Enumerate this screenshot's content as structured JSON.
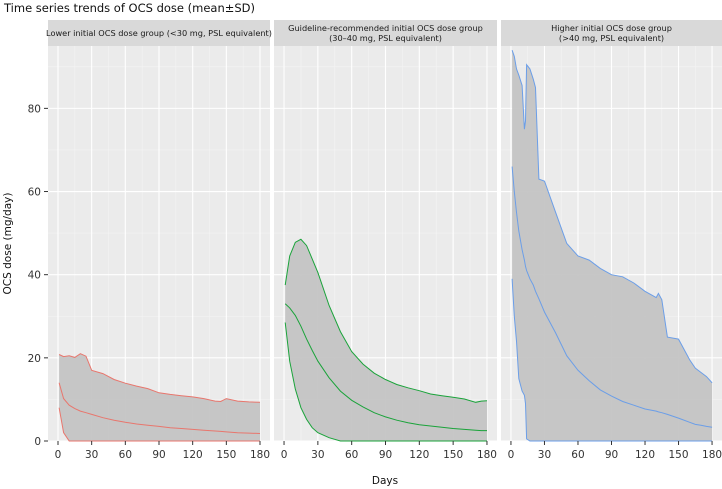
{
  "title": "Time series trends of OCS dose (mean±SD)",
  "chart_data": {
    "type": "area",
    "title": "Time series trends of OCS dose (mean±SD)",
    "xlabel": "Days",
    "ylabel": "OCS dose (mg/day)",
    "xlim": [
      0,
      180
    ],
    "ylim": [
      0,
      95
    ],
    "x_ticks": [
      0,
      30,
      60,
      90,
      120,
      150,
      180
    ],
    "y_ticks": [
      0,
      20,
      40,
      60,
      80
    ],
    "x_tick_labels": [
      "0",
      "30",
      "60",
      "90",
      "120",
      "150",
      "180"
    ],
    "y_tick_labels": [
      "0",
      "20",
      "40",
      "60",
      "80"
    ],
    "grid": true,
    "legend": "none",
    "panels": [
      {
        "strip": [
          "Lower initial OCS dose group (<30 mg, PSL equivalent)"
        ],
        "color": "#e8766d",
        "x": [
          1,
          5,
          10,
          15,
          20,
          25,
          30,
          40,
          50,
          60,
          70,
          80,
          90,
          100,
          110,
          120,
          130,
          140,
          145,
          150,
          160,
          170,
          180
        ],
        "mean": [
          14.0,
          10.2,
          8.6,
          7.8,
          7.2,
          6.8,
          6.4,
          5.6,
          5.0,
          4.5,
          4.1,
          3.8,
          3.5,
          3.2,
          3.0,
          2.8,
          2.6,
          2.4,
          2.3,
          2.2,
          2.0,
          1.9,
          1.8
        ],
        "upper": [
          20.8,
          20.3,
          20.5,
          20.1,
          21.0,
          20.4,
          17.0,
          16.2,
          14.8,
          13.9,
          13.2,
          12.6,
          11.6,
          11.2,
          10.9,
          10.6,
          10.2,
          9.6,
          9.5,
          10.2,
          9.6,
          9.4,
          9.3
        ],
        "lower": [
          8.0,
          2.0,
          0,
          0,
          0,
          0,
          0,
          0,
          0,
          0,
          0,
          0,
          0,
          0,
          0,
          0,
          0,
          0,
          0,
          0,
          0,
          0,
          0
        ]
      },
      {
        "strip": [
          "Guideline-recommended initial OCS dose group",
          "(30–40 mg, PSL equivalent)"
        ],
        "color": "#1aa33a",
        "x": [
          1,
          5,
          10,
          15,
          20,
          25,
          30,
          40,
          50,
          60,
          70,
          80,
          90,
          100,
          110,
          120,
          130,
          140,
          150,
          160,
          170,
          175,
          180
        ],
        "mean": [
          33.0,
          32.0,
          30.2,
          27.6,
          24.5,
          21.8,
          19.2,
          15.2,
          12.0,
          9.8,
          8.2,
          6.8,
          5.8,
          5.0,
          4.4,
          3.9,
          3.6,
          3.3,
          3.0,
          2.8,
          2.6,
          2.5,
          2.5
        ],
        "upper": [
          37.5,
          44.5,
          47.8,
          48.5,
          47.0,
          43.8,
          40.5,
          32.6,
          26.3,
          21.5,
          18.5,
          16.3,
          14.8,
          13.6,
          12.8,
          12.1,
          11.3,
          10.9,
          10.5,
          10.1,
          9.3,
          9.6,
          9.7
        ],
        "lower": [
          28.5,
          19.2,
          12.5,
          8.0,
          5.2,
          3.2,
          2.0,
          0.8,
          0,
          0,
          0,
          0,
          0,
          0,
          0,
          0,
          0,
          0,
          0,
          0,
          0,
          0,
          0
        ]
      },
      {
        "strip": [
          "Higher initial OCS dose group",
          "(>40 mg, PSL equivalent)"
        ],
        "color": "#6b9ee8",
        "x": [
          1,
          3,
          5,
          7,
          10,
          12,
          13,
          14,
          17,
          20,
          22,
          25,
          30,
          40,
          50,
          60,
          70,
          80,
          90,
          100,
          110,
          120,
          130,
          132,
          135,
          140,
          150,
          160,
          165,
          170,
          175,
          180
        ],
        "mean": [
          66.0,
          60.0,
          55.0,
          50.5,
          46.0,
          43.5,
          42.0,
          41.0,
          39.0,
          37.5,
          36.0,
          34.2,
          31.0,
          26.0,
          20.5,
          17.0,
          14.5,
          12.3,
          10.8,
          9.5,
          8.6,
          7.7,
          7.2,
          7.0,
          6.8,
          6.4,
          5.5,
          4.5,
          4.0,
          3.8,
          3.5,
          3.3
        ],
        "upper": [
          94.0,
          92.5,
          89.5,
          88.0,
          85.5,
          75.0,
          77.0,
          90.5,
          89.5,
          87.0,
          85.0,
          63.0,
          62.5,
          55.0,
          47.5,
          44.5,
          43.5,
          41.5,
          40.0,
          39.5,
          38.0,
          36.0,
          34.5,
          35.5,
          34.0,
          25.0,
          24.5,
          19.5,
          17.5,
          16.5,
          15.5,
          14.0
        ],
        "lower": [
          39.0,
          30.0,
          24.0,
          15.0,
          12.0,
          11.0,
          9.0,
          0.5,
          0,
          0,
          0,
          0,
          0,
          0,
          0,
          0,
          0,
          0,
          0,
          0,
          0,
          0,
          0,
          0,
          0,
          0,
          0,
          0,
          0,
          0,
          0,
          0
        ]
      }
    ]
  },
  "colors": {
    "panel_background": "#ebebeb",
    "strip_background": "#d9d9d9",
    "grid_major": "#ffffff",
    "grid_minor": "#f4f4f4",
    "ribbon_fill": "#c4c4c4"
  }
}
